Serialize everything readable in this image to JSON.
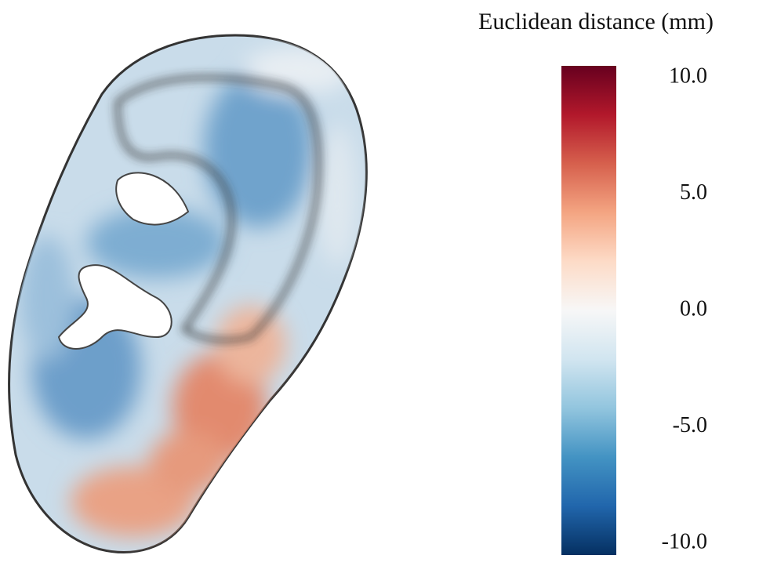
{
  "chart_data": {
    "type": "colorbar",
    "title": "Euclidean distance (mm)",
    "ylim": [
      -10.5,
      10.5
    ],
    "yticks": [
      {
        "value": 10,
        "label": "10.0"
      },
      {
        "value": 5,
        "label": "5.0"
      },
      {
        "value": 0,
        "label": "0.0"
      },
      {
        "value": -5,
        "label": "-5.0"
      },
      {
        "value": -10,
        "label": "-10.0"
      }
    ],
    "colormap": [
      "#053061",
      "#2166ac",
      "#4393c3",
      "#92c5de",
      "#d1e5f0",
      "#f7f7f7",
      "#fddbc7",
      "#f4a582",
      "#d6604d",
      "#b2182b",
      "#67001f"
    ]
  }
}
